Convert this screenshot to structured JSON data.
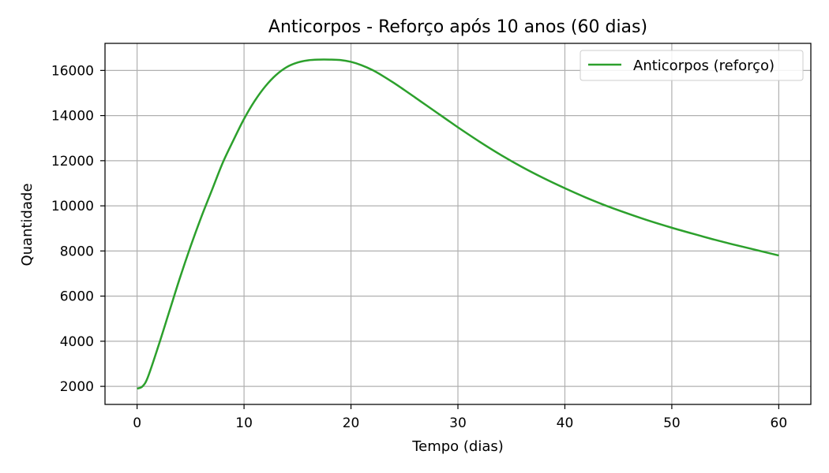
{
  "chart_data": {
    "type": "line",
    "title": "Anticorpos - Reforço após 10 anos (60 dias)",
    "xlabel": "Tempo (dias)",
    "ylabel": "Quantidade",
    "xlim": [
      -3,
      63
    ],
    "ylim": [
      1200,
      17200
    ],
    "xticks": [
      0,
      10,
      20,
      30,
      40,
      50,
      60
    ],
    "yticks": [
      2000,
      4000,
      6000,
      8000,
      10000,
      12000,
      14000,
      16000
    ],
    "grid": true,
    "legend_position": "top-right",
    "series": [
      {
        "name": "Anticorpos (reforço)",
        "color": "#2ca02c",
        "x": [
          0,
          0.5,
          1,
          2,
          3,
          4,
          5,
          6,
          7,
          8,
          9,
          10,
          11,
          12,
          13,
          14,
          15,
          16,
          17,
          18,
          19,
          20,
          21,
          22,
          23,
          24,
          25,
          26,
          27,
          28,
          29,
          30,
          32,
          34,
          36,
          38,
          40,
          42,
          44,
          46,
          48,
          50,
          52,
          54,
          56,
          58,
          60
        ],
        "y": [
          1900,
          2000,
          2400,
          3800,
          5300,
          6800,
          8200,
          9500,
          10700,
          11900,
          12900,
          13850,
          14650,
          15300,
          15800,
          16150,
          16350,
          16450,
          16480,
          16480,
          16460,
          16380,
          16230,
          16020,
          15750,
          15450,
          15130,
          14800,
          14470,
          14140,
          13810,
          13480,
          12850,
          12260,
          11720,
          11230,
          10780,
          10360,
          9980,
          9640,
          9320,
          9030,
          8760,
          8500,
          8260,
          8030,
          7800
        ]
      }
    ]
  }
}
